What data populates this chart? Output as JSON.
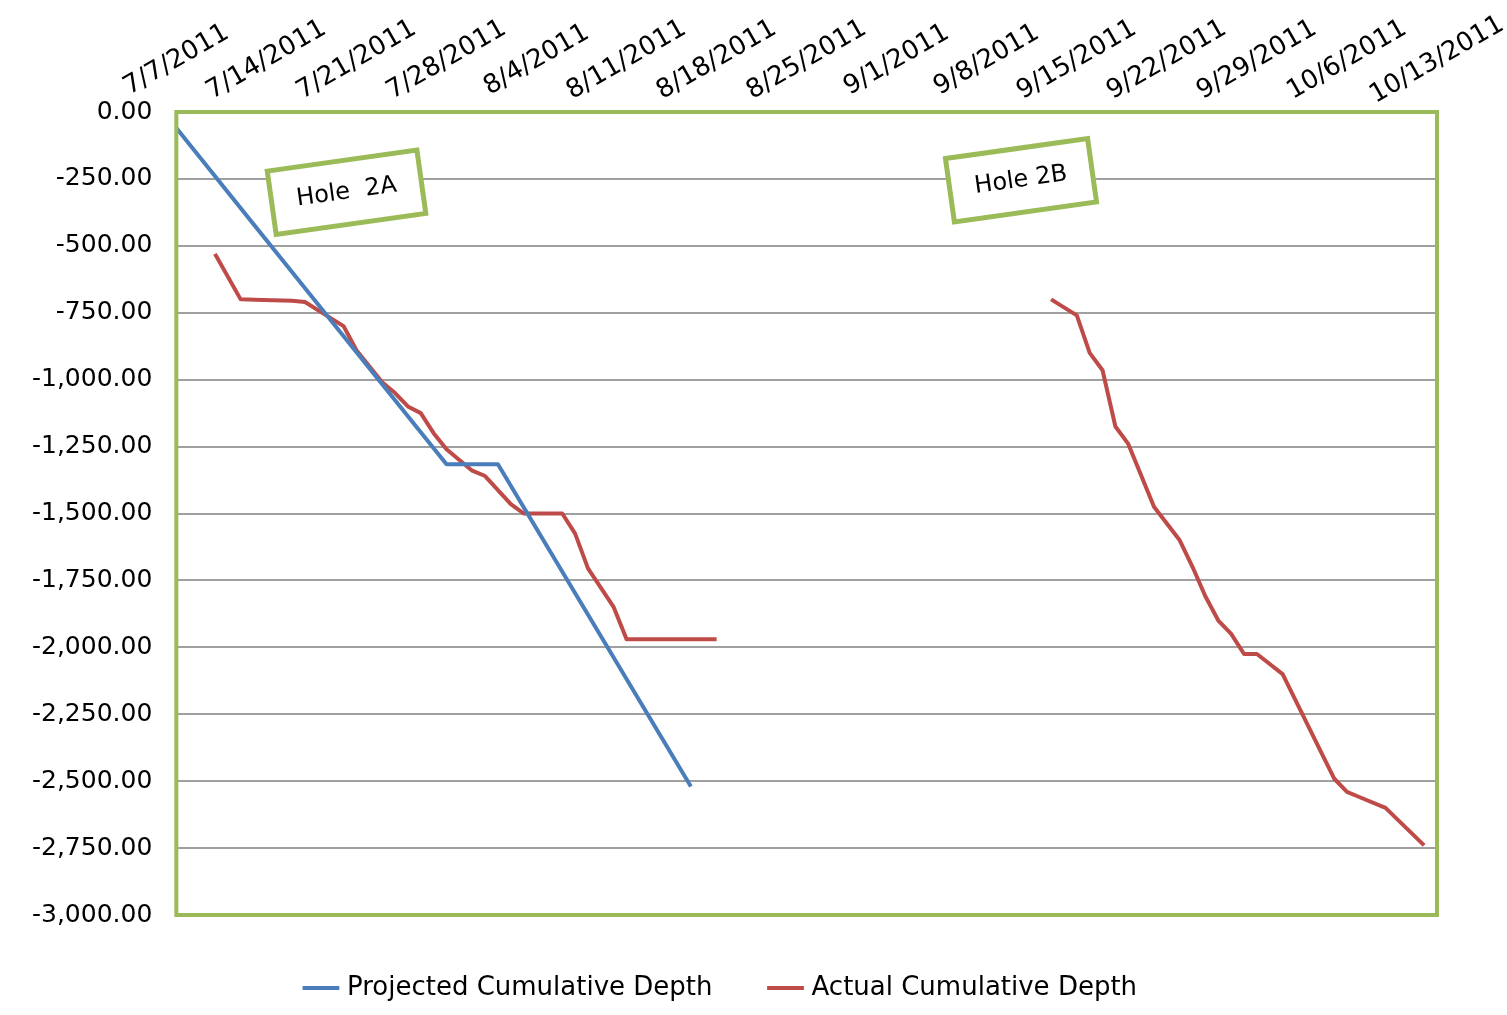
{
  "chart_data": {
    "type": "line",
    "xlim": [
      "2011-07-07",
      "2011-10-13"
    ],
    "xticks": [
      {
        "value": "2011-07-07",
        "label": "7/7/2011"
      },
      {
        "value": "2011-07-14",
        "label": "7/14/2011"
      },
      {
        "value": "2011-07-21",
        "label": "7/21/2011"
      },
      {
        "value": "2011-07-28",
        "label": "7/28/2011"
      },
      {
        "value": "2011-08-04",
        "label": "8/4/2011"
      },
      {
        "value": "2011-08-11",
        "label": "8/11/2011"
      },
      {
        "value": "2011-08-18",
        "label": "8/18/2011"
      },
      {
        "value": "2011-08-25",
        "label": "8/25/2011"
      },
      {
        "value": "2011-09-01",
        "label": "9/1/2011"
      },
      {
        "value": "2011-09-08",
        "label": "9/8/2011"
      },
      {
        "value": "2011-09-15",
        "label": "9/15/2011"
      },
      {
        "value": "2011-09-22",
        "label": "9/22/2011"
      },
      {
        "value": "2011-09-29",
        "label": "9/29/2011"
      },
      {
        "value": "2011-10-06",
        "label": "10/6/2011"
      },
      {
        "value": "2011-10-13",
        "label": "10/13/2011"
      }
    ],
    "ylim": [
      -3000,
      0
    ],
    "yticks": [
      {
        "value": 0,
        "label": "0.00"
      },
      {
        "value": -250,
        "label": "-250.00"
      },
      {
        "value": -500,
        "label": "-500.00"
      },
      {
        "value": -750,
        "label": "-750.00"
      },
      {
        "value": -1000,
        "label": "-1,000.00"
      },
      {
        "value": -1250,
        "label": "-1,250.00"
      },
      {
        "value": -1500,
        "label": "-1,500.00"
      },
      {
        "value": -1750,
        "label": "-1,750.00"
      },
      {
        "value": -2000,
        "label": "-2,000.00"
      },
      {
        "value": -2250,
        "label": "-2,250.00"
      },
      {
        "value": -2500,
        "label": "-2,500.00"
      },
      {
        "value": -2750,
        "label": "-2,750.00"
      },
      {
        "value": -3000,
        "label": "-3,000.00"
      }
    ],
    "grid": "y",
    "legend": "bottom",
    "marker": "none",
    "line_style": "solid",
    "annotations": [
      "Hole  2A",
      "Hole 2B"
    ],
    "series": [
      {
        "name": "Projected Cumulative Depth",
        "color": "#4a7ebb",
        "x": [
          "2011-07-07",
          "2011-07-28",
          "2011-08-01",
          "2011-08-16"
        ],
        "values": [
          -60,
          -1316,
          -1316,
          -2520
        ]
      },
      {
        "name": "Actual Cumulative Depth",
        "color": "#be4b48",
        "x": [
          "2011-07-10",
          "2011-07-12",
          "2011-07-16",
          "2011-07-17",
          "2011-07-19",
          "2011-07-20",
          "2011-07-21",
          "2011-07-23",
          "2011-07-24",
          "2011-07-25",
          "2011-07-26",
          "2011-07-27",
          "2011-07-28",
          "2011-07-30",
          "2011-07-31",
          "2011-08-02",
          "2011-08-03",
          "2011-08-06",
          "2011-08-07",
          "2011-08-08",
          "2011-08-10",
          "2011-08-11",
          "2011-08-18",
          "2011-08-30",
          "2011-09-13",
          "2011-09-15",
          "2011-09-16",
          "2011-09-17",
          "2011-09-18",
          "2011-09-19",
          "2011-09-21",
          "2011-09-23",
          "2011-09-24",
          "2011-09-25",
          "2011-09-26",
          "2011-09-27",
          "2011-09-28",
          "2011-09-29",
          "2011-10-01",
          "2011-10-05",
          "2011-10-06",
          "2011-10-07",
          "2011-10-09",
          "2011-10-12"
        ],
        "values": [
          -530,
          -700,
          -705,
          -710,
          -770,
          -800,
          -890,
          -1010,
          -1050,
          -1100,
          -1125,
          -1200,
          -1260,
          -1340,
          -1360,
          -1465,
          -1500,
          -1500,
          -1575,
          -1705,
          -1850,
          -1970,
          -1970,
          null,
          -700,
          -760,
          -900,
          -965,
          -1175,
          -1240,
          -1475,
          -1600,
          -1700,
          -1810,
          -1900,
          -1950,
          -2025,
          -2025,
          -2100,
          -2490,
          -2540,
          -2560,
          -2600,
          -2740
        ]
      }
    ]
  }
}
